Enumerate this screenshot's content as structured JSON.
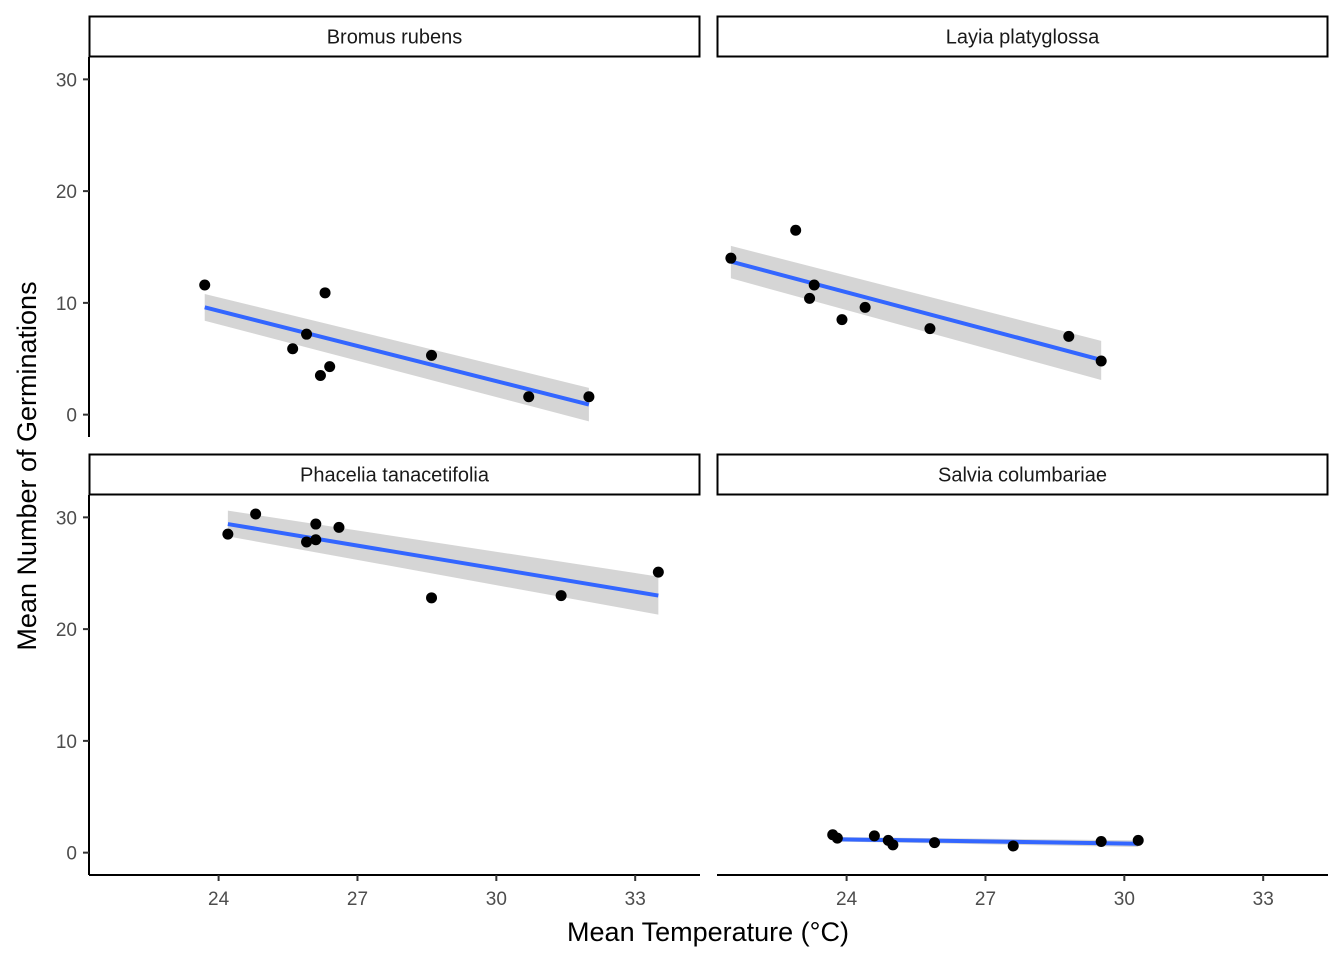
{
  "chart_data": {
    "type": "scatter",
    "facet_layout": "2x2",
    "xlabel": "Mean Temperature (°C)",
    "ylabel": "Mean Number of Germinations",
    "xlim": [
      21.2,
      34.4
    ],
    "ylim": [
      -2,
      32
    ],
    "x_ticks": [
      24,
      27,
      30,
      33
    ],
    "y_ticks": [
      0,
      10,
      20,
      30
    ],
    "grid": false,
    "trend": "linear fit with confidence band",
    "colors": {
      "points": "#000000",
      "fit_line": "#3366FF",
      "band": "#D3D3D3",
      "strip_border": "#000000"
    },
    "panels": [
      {
        "title": "Bromus rubens",
        "points": [
          {
            "x": 23.7,
            "y": 11.6
          },
          {
            "x": 25.6,
            "y": 5.9
          },
          {
            "x": 25.9,
            "y": 7.2
          },
          {
            "x": 26.2,
            "y": 3.5
          },
          {
            "x": 26.3,
            "y": 10.9
          },
          {
            "x": 26.4,
            "y": 4.3
          },
          {
            "x": 28.6,
            "y": 5.3
          },
          {
            "x": 30.7,
            "y": 1.6
          },
          {
            "x": 32.0,
            "y": 1.6
          }
        ],
        "fit": {
          "x": [
            23.7,
            32.0
          ],
          "y": [
            9.6,
            0.9
          ],
          "lower": [
            8.4,
            -0.6
          ],
          "upper": [
            10.8,
            2.4
          ]
        }
      },
      {
        "title": "Layia platyglossa",
        "points": [
          {
            "x": 21.5,
            "y": 14.0
          },
          {
            "x": 22.9,
            "y": 16.5
          },
          {
            "x": 23.2,
            "y": 10.4
          },
          {
            "x": 23.3,
            "y": 11.6
          },
          {
            "x": 23.9,
            "y": 8.5
          },
          {
            "x": 24.4,
            "y": 9.6
          },
          {
            "x": 25.8,
            "y": 7.7
          },
          {
            "x": 28.8,
            "y": 7.0
          },
          {
            "x": 29.5,
            "y": 4.8
          }
        ],
        "fit": {
          "x": [
            21.5,
            29.5
          ],
          "y": [
            13.7,
            4.9
          ],
          "lower": [
            12.2,
            3.1
          ],
          "upper": [
            15.1,
            6.6
          ]
        }
      },
      {
        "title": "Phacelia tanacetifolia",
        "points": [
          {
            "x": 24.2,
            "y": 28.5
          },
          {
            "x": 24.8,
            "y": 30.3
          },
          {
            "x": 25.9,
            "y": 27.8
          },
          {
            "x": 26.1,
            "y": 29.4
          },
          {
            "x": 26.1,
            "y": 28.0
          },
          {
            "x": 26.6,
            "y": 29.1
          },
          {
            "x": 28.6,
            "y": 22.8
          },
          {
            "x": 31.4,
            "y": 23.0
          },
          {
            "x": 33.5,
            "y": 25.1
          }
        ],
        "fit": {
          "x": [
            24.2,
            33.5
          ],
          "y": [
            29.4,
            23.0
          ],
          "lower": [
            28.3,
            21.3
          ],
          "upper": [
            30.6,
            24.7
          ]
        }
      },
      {
        "title": "Salvia columbariae",
        "points": [
          {
            "x": 23.7,
            "y": 1.6
          },
          {
            "x": 23.8,
            "y": 1.3
          },
          {
            "x": 24.6,
            "y": 1.5
          },
          {
            "x": 24.9,
            "y": 1.1
          },
          {
            "x": 25.0,
            "y": 0.7
          },
          {
            "x": 25.9,
            "y": 0.9
          },
          {
            "x": 27.6,
            "y": 0.6
          },
          {
            "x": 29.5,
            "y": 1.0
          },
          {
            "x": 30.3,
            "y": 1.1
          }
        ],
        "fit": {
          "x": [
            23.7,
            30.3
          ],
          "y": [
            1.2,
            0.8
          ],
          "lower": [
            1.0,
            0.5
          ],
          "upper": [
            1.4,
            1.1
          ]
        }
      }
    ]
  }
}
